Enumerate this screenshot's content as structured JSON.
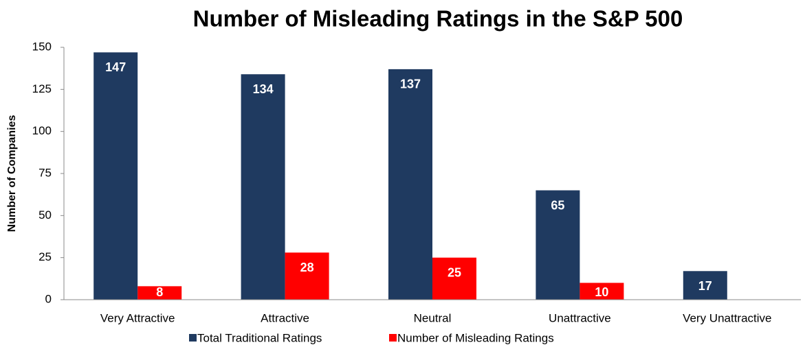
{
  "chart_data": {
    "type": "bar",
    "title": "Number of Misleading Ratings in the S&P 500",
    "y_label": "Number of Companies",
    "categories": [
      "Very Attractive",
      "Attractive",
      "Neutral",
      "Unattractive",
      "Very Unattractive"
    ],
    "series": [
      {
        "name": "Total Traditional Ratings",
        "color": "#1f3a60",
        "values": [
          147,
          134,
          137,
          65,
          17
        ]
      },
      {
        "name": "Number of Misleading Ratings",
        "color": "#ff0000",
        "values": [
          8,
          28,
          25,
          10,
          0
        ]
      }
    ],
    "ylim": [
      0,
      150
    ],
    "yticks": [
      0,
      25,
      50,
      75,
      100,
      125,
      150
    ],
    "grid": false,
    "legend": "bottom"
  }
}
